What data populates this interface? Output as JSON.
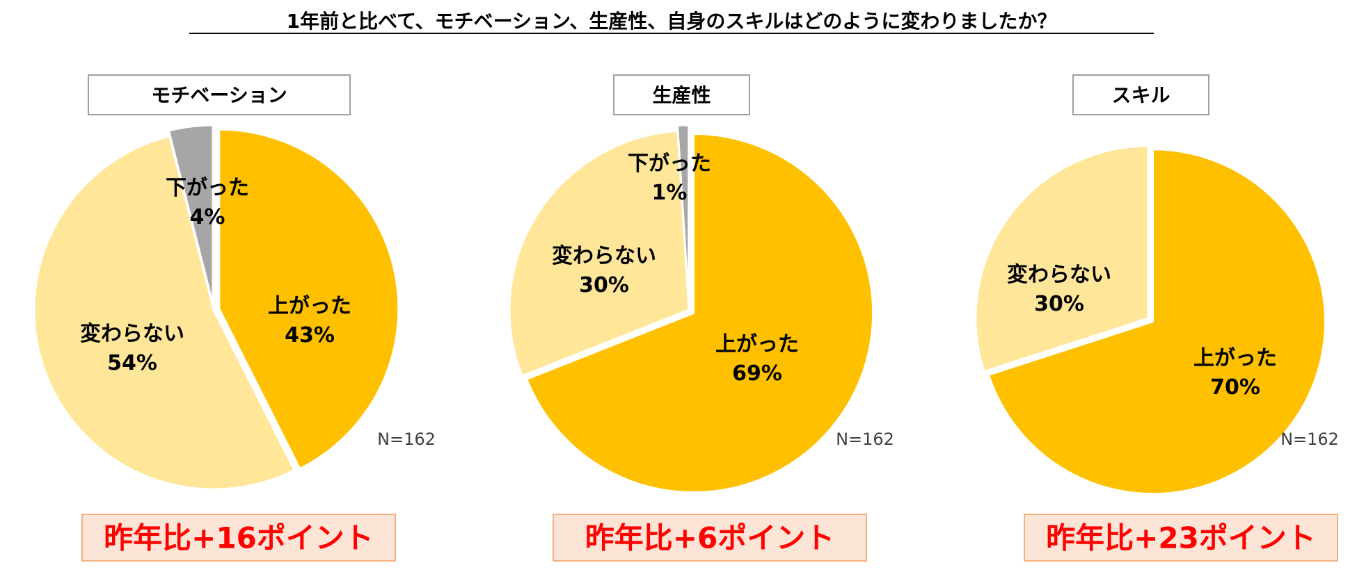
{
  "title": "1年前と比べて、モチベーション、生産性、自身のスキルはどのように変わりましたか？",
  "colors": {
    "up": "#FFC000",
    "same": "#FFE699",
    "down": "#A6A6A6",
    "callout_text": "#FF0000",
    "callout_fill": "#FCE4D6",
    "callout_border": "#F4B183"
  },
  "chart_data": [
    {
      "type": "pie",
      "title": "モチベーション",
      "n_label": "N=162",
      "callout": "昨年比+16ポイント",
      "slices": [
        {
          "label": "上がった",
          "value": 43,
          "value_label": "43%",
          "color": "#FFC000",
          "exploded": true
        },
        {
          "label": "変わらない",
          "value": 54,
          "value_label": "54%",
          "color": "#FFE699",
          "exploded": false
        },
        {
          "label": "下がった",
          "value": 4,
          "value_label": "4%",
          "color": "#A6A6A6",
          "exploded": true
        }
      ]
    },
    {
      "type": "pie",
      "title": "生産性",
      "n_label": "N=162",
      "callout": "昨年比+6ポイント",
      "slices": [
        {
          "label": "上がった",
          "value": 69,
          "value_label": "69%",
          "color": "#FFC000",
          "exploded": true
        },
        {
          "label": "変わらない",
          "value": 30,
          "value_label": "30%",
          "color": "#FFE699",
          "exploded": false
        },
        {
          "label": "下がった",
          "value": 1,
          "value_label": "1%",
          "color": "#A6A6A6",
          "exploded": true
        }
      ]
    },
    {
      "type": "pie",
      "title": "スキル",
      "n_label": "N=162",
      "callout": "昨年比+23ポイント",
      "slices": [
        {
          "label": "上がった",
          "value": 70,
          "value_label": "70%",
          "color": "#FFC000",
          "exploded": true
        },
        {
          "label": "変わらない",
          "value": 30,
          "value_label": "30%",
          "color": "#FFE699",
          "exploded": false
        }
      ]
    }
  ]
}
